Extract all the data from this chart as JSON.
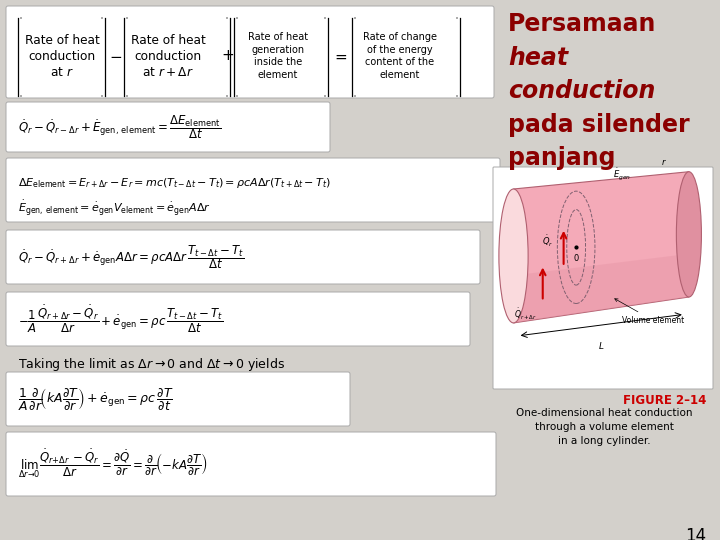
{
  "bg_color": "#d3d0cb",
  "title_lines": [
    "Persamaan",
    "heat",
    "conduction",
    "pada silender",
    "panjang"
  ],
  "title_color": "#8b0000",
  "title_styles": [
    "normal",
    "italic",
    "italic",
    "normal",
    "normal"
  ],
  "title_fontsize": 17,
  "figure2_14_color": "#cc0000",
  "figure_caption": [
    "One-dimensional heat conduction",
    "through a volume element",
    "in a long cylinder."
  ],
  "page_number": "14"
}
